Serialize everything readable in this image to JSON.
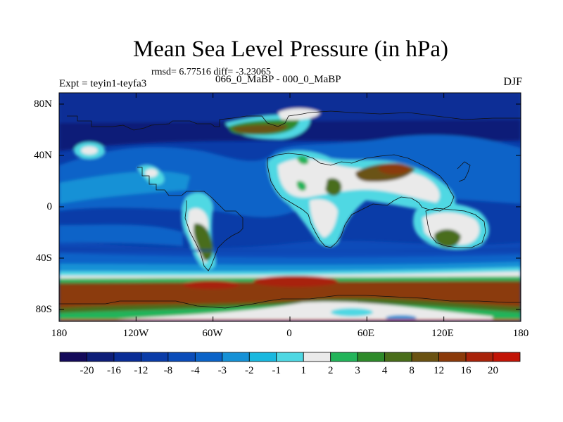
{
  "title": "Mean Sea Level Pressure (in hPa)",
  "stats": "rmsd= 6.77516 diff= -3.23065",
  "experiment": "Expt = teyin1-teyfa3",
  "period": "066_0_MaBP - 000_0_MaBP",
  "season": "DJF",
  "lat_labels": [
    "80N",
    "40N",
    "0",
    "40S",
    "80S"
  ],
  "lon_labels": [
    "180",
    "120W",
    "60W",
    "0",
    "60E",
    "120E",
    "180"
  ],
  "colorbar": {
    "labels": [
      "-20",
      "-16",
      "-12",
      "-8",
      "-4",
      "-3",
      "-2",
      "-1",
      "1",
      "2",
      "3",
      "4",
      "8",
      "12",
      "16",
      "20"
    ],
    "colors": [
      "#140a5a",
      "#0e1e78",
      "#0a2d96",
      "#0a3ca8",
      "#0a4cb9",
      "#0b63c8",
      "#1691d6",
      "#19b8df",
      "#4fd8e3",
      "#eaeaea",
      "#23b45a",
      "#2e8a2a",
      "#496d1a",
      "#6a5212",
      "#8b3a0a",
      "#a8230a",
      "#c21406"
    ]
  }
}
